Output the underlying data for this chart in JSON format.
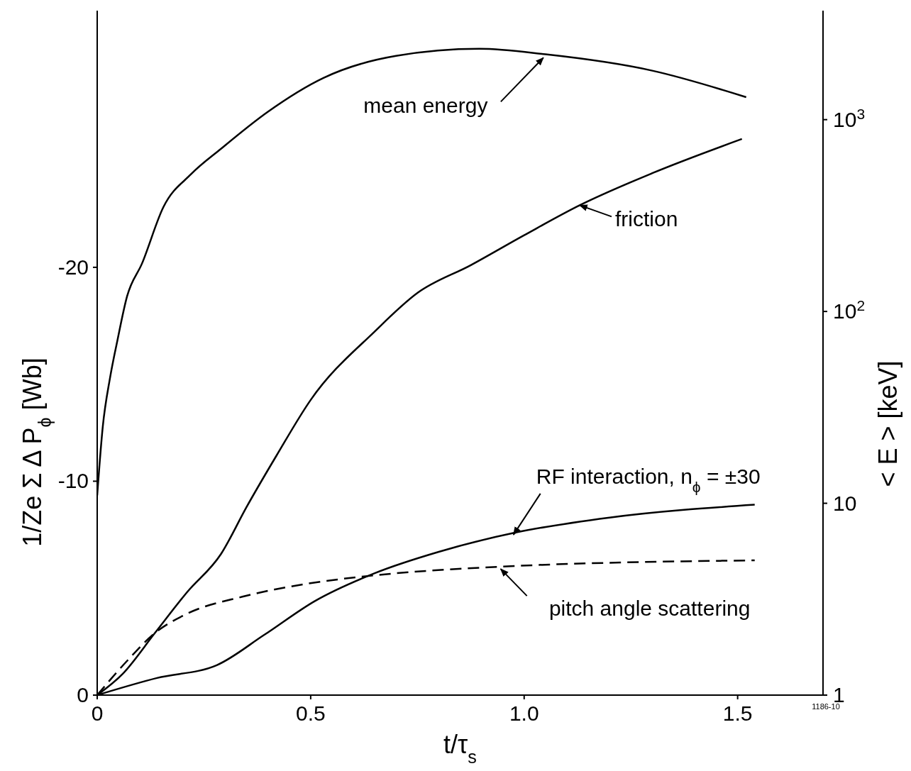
{
  "chart_data": {
    "type": "line",
    "xlabel": "t/τ$_{s}$",
    "ylabel": "1/Ze Σ Δ P$_{ϕ}$ [Wb]",
    "y2label": "< E > [keV]",
    "xlim": [
      0,
      1.7
    ],
    "xticks": [
      0,
      0.5,
      {
        "value": 1,
        "label": "1.0"
      },
      1.5
    ],
    "ylim": [
      0,
      -32
    ],
    "yticks": [
      0,
      -10,
      -20
    ],
    "y2lim": [
      1,
      3700
    ],
    "y2ticks": [
      1,
      10,
      {
        "value": 100,
        "label": "10$^{2}$"
      },
      {
        "value": 1000,
        "label": "10$^{3}$"
      }
    ],
    "log": "y2",
    "series": [
      {
        "color": "#000000",
        "axis": "y2",
        "line_style": "solid",
        "x": [
          0,
          0.013,
          0.03,
          0.047,
          0.07,
          0.105,
          0.155,
          0.22,
          0.29,
          0.4,
          0.53,
          0.7,
          0.895,
          1.05,
          1.3,
          1.52
        ],
        "values": [
          11,
          25,
          45,
          70,
          120,
          178,
          350,
          520,
          705,
          1100,
          1650,
          2150,
          2340,
          2190,
          1800,
          1310
        ]
      },
      {
        "color": "#000000",
        "line_style": "solid",
        "x": [
          0,
          0.06,
          0.135,
          0.21,
          0.29,
          0.35,
          0.42,
          0.5,
          0.65,
          0.75,
          0.875,
          1.0,
          1.13,
          1.3,
          1.51
        ],
        "values": [
          0,
          -1,
          -2.9,
          -4.8,
          -6.6,
          -8.8,
          -11.2,
          -13.8,
          -17,
          -18.8,
          -20.1,
          -21.5,
          -22.9,
          -24.4,
          -26
        ]
      },
      {
        "color": "#000000",
        "line_style": "solid",
        "x": [
          0,
          0.14,
          0.28,
          0.39,
          0.51,
          0.65,
          0.8,
          0.98,
          1.2,
          1.54
        ],
        "values": [
          0,
          -0.8,
          -1.4,
          -2.8,
          -4.4,
          -5.7,
          -6.7,
          -7.6,
          -8.3,
          -8.9
        ]
      },
      {
        "color": "#000000",
        "line_style": "dashed",
        "x": [
          0,
          0.07,
          0.135,
          0.21,
          0.34,
          0.49,
          0.65,
          0.94,
          1.54
        ],
        "values": [
          0,
          -1.6,
          -2.9,
          -3.8,
          -4.6,
          -5.2,
          -5.6,
          -6,
          -6.3
        ]
      }
    ],
    "annotations": [
      {
        "text": "mean energy",
        "x": 1.045,
        "y": -29.8
      },
      {
        "text": "friction",
        "x": 1.13,
        "y": -22.9
      },
      {
        "text": "RF interaction, n$_{ϕ}$ = ±30",
        "x": 0.975,
        "y": -7.5
      },
      {
        "text": "pitch angle scattering",
        "x": 0.945,
        "y": -5.9
      },
      "1186-10"
    ]
  }
}
